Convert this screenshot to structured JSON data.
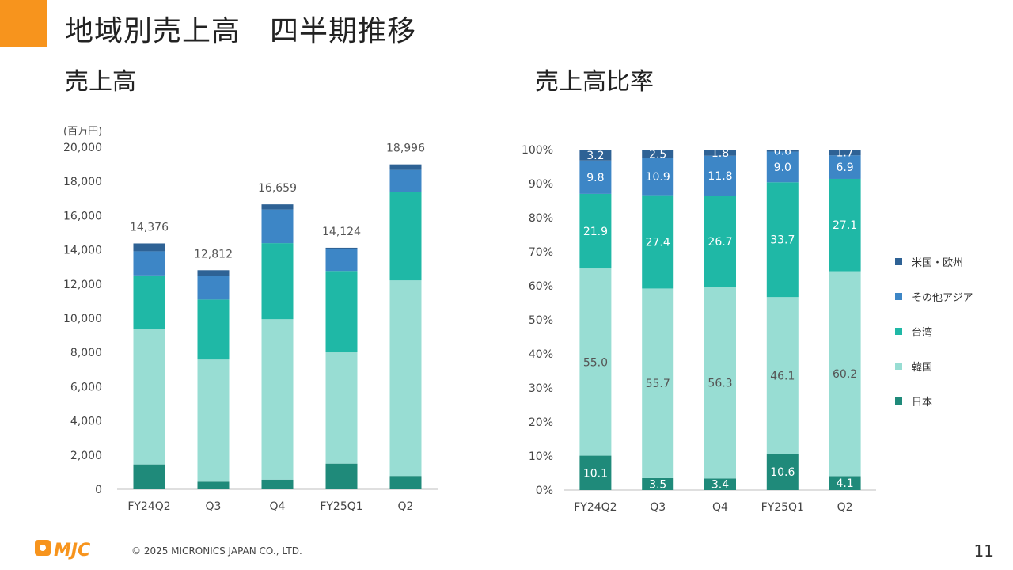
{
  "slide": {
    "title": "地域別売上高　四半期推移",
    "subtitle_left": "売上高",
    "subtitle_right": "売上高比率",
    "copyright": "© 2025 MICRONICS JAPAN CO., LTD.",
    "logo_text": "MJC",
    "page_number": "11"
  },
  "colors": {
    "accent": "#f7941d",
    "日本": "#1f8a7a",
    "韓国": "#98ddd3",
    "台湾": "#1fb8a6",
    "その他アジア": "#3d86c6",
    "米国・欧州": "#2e6295"
  },
  "chart_data": [
    {
      "type": "bar",
      "stacked": true,
      "unit_label": "(百万円)",
      "categories": [
        "FY24Q2",
        "Q3",
        "Q4",
        "FY25Q1",
        "Q2"
      ],
      "totals": [
        "14,376",
        "12,812",
        "16,659",
        "14,124",
        "18,996"
      ],
      "ylim": [
        0,
        20000
      ],
      "yticks": [
        "0",
        "2,000",
        "4,000",
        "6,000",
        "8,000",
        "10,000",
        "12,000",
        "14,000",
        "16,000",
        "18,000",
        "20,000"
      ],
      "series": [
        {
          "name": "日本",
          "values": [
            1452,
            448,
            566,
            1497,
            779
          ]
        },
        {
          "name": "韓国",
          "values": [
            7907,
            7136,
            9379,
            6511,
            11436
          ]
        },
        {
          "name": "台湾",
          "values": [
            3148,
            3510,
            4448,
            4760,
            5148
          ]
        },
        {
          "name": "その他アジア",
          "values": [
            1409,
            1397,
            1966,
            1271,
            1311
          ]
        },
        {
          "name": "米国・欧州",
          "values": [
            460,
            320,
            300,
            85,
            323
          ]
        }
      ]
    },
    {
      "type": "bar",
      "stacked": true,
      "percent": true,
      "categories": [
        "FY24Q2",
        "Q3",
        "Q4",
        "FY25Q1",
        "Q2"
      ],
      "ylim": [
        0,
        100
      ],
      "yticks": [
        "0%",
        "10%",
        "20%",
        "30%",
        "40%",
        "50%",
        "60%",
        "70%",
        "80%",
        "90%",
        "100%"
      ],
      "legend": [
        "米国・欧州",
        "その他アジア",
        "台湾",
        "韓国",
        "日本"
      ],
      "legend_position": "right",
      "series": [
        {
          "name": "日本",
          "values": [
            10.1,
            3.5,
            3.4,
            10.6,
            4.1
          ],
          "labels": [
            "10.1",
            "3.5",
            "3.4",
            "10.6",
            "4.1"
          ]
        },
        {
          "name": "韓国",
          "values": [
            55.0,
            55.7,
            56.3,
            46.1,
            60.2
          ],
          "labels": [
            "55.0",
            "55.7",
            "56.3",
            "46.1",
            "60.2"
          ]
        },
        {
          "name": "台湾",
          "values": [
            21.9,
            27.4,
            26.7,
            33.7,
            27.1
          ],
          "labels": [
            "21.9",
            "27.4",
            "26.7",
            "33.7",
            "27.1"
          ]
        },
        {
          "name": "その他アジア",
          "values": [
            9.8,
            10.9,
            11.8,
            9.0,
            6.9
          ],
          "labels": [
            "9.8",
            "10.9",
            "11.8",
            "9.0",
            "6.9"
          ]
        },
        {
          "name": "米国・欧州",
          "values": [
            3.2,
            2.5,
            1.8,
            0.6,
            1.7
          ],
          "labels": [
            "3.2",
            "2.5",
            "1.8",
            "0.6",
            "1.7"
          ]
        }
      ]
    }
  ]
}
